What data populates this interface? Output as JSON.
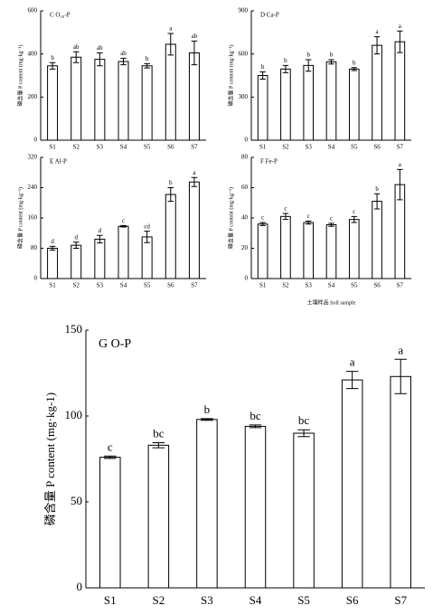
{
  "chart_data": [
    {
      "type": "bar",
      "title": "C   O₁₀-P",
      "ylabel": "磷含量 P content (mg·kg⁻¹)",
      "categories": [
        "S1",
        "S2",
        "S3",
        "S4",
        "S5",
        "S6",
        "S7"
      ],
      "values": [
        345,
        385,
        375,
        365,
        345,
        445,
        405
      ],
      "errors": [
        15,
        25,
        30,
        15,
        10,
        50,
        55
      ],
      "annotations": [
        "b",
        "ab",
        "ab",
        "ab",
        "b",
        "a",
        "ab"
      ],
      "ylim": [
        0,
        600
      ],
      "yticks": [
        0,
        200,
        400,
        600
      ]
    },
    {
      "type": "bar",
      "title": "D   Ca-P",
      "ylabel": "磷含量 P content (mg·kg⁻¹)",
      "categories": [
        "S1",
        "S2",
        "S3",
        "S4",
        "S5",
        "S6",
        "S7"
      ],
      "values": [
        450,
        495,
        520,
        545,
        495,
        660,
        685
      ],
      "errors": [
        25,
        25,
        40,
        15,
        10,
        60,
        75
      ],
      "annotations": [
        "b",
        "b",
        "b",
        "b",
        "b",
        "a",
        "a"
      ],
      "ylim": [
        0,
        900
      ],
      "yticks": [
        0,
        300,
        600,
        900
      ]
    },
    {
      "type": "bar",
      "title": "E   Al-P",
      "ylabel": "磷含量 P content (mg·kg⁻¹)",
      "categories": [
        "S1",
        "S2",
        "S3",
        "S4",
        "S5",
        "S6",
        "S7"
      ],
      "values": [
        80,
        88,
        104,
        138,
        110,
        222,
        255
      ],
      "errors": [
        5,
        8,
        10,
        2,
        15,
        18,
        12
      ],
      "annotations": [
        "d",
        "d",
        "d",
        "c",
        "cd",
        "b",
        "a"
      ],
      "ylim": [
        0,
        320
      ],
      "yticks": [
        0,
        80,
        160,
        240,
        320
      ]
    },
    {
      "type": "bar",
      "title": "F   Fe-P",
      "ylabel": "磷含量 P content (mg·kg⁻¹)",
      "xlabel": "土壤样品 Soil sample",
      "categories": [
        "S1",
        "S2",
        "S3",
        "S4",
        "S5",
        "S6",
        "S7"
      ],
      "values": [
        36,
        41,
        37,
        35.5,
        39,
        51,
        62
      ],
      "errors": [
        1,
        2,
        1,
        1,
        2,
        5,
        10
      ],
      "annotations": [
        "c",
        "c",
        "c",
        "c",
        "c",
        "b",
        "a"
      ],
      "ylim": [
        0,
        80
      ],
      "yticks": [
        0,
        20,
        40,
        60,
        80
      ]
    },
    {
      "type": "bar",
      "title": "G     O-P",
      "ylabel": "磷含量 P content (mg·kg-1)",
      "categories": [
        "S1",
        "S2",
        "S3",
        "S4",
        "S5",
        "S6",
        "S7"
      ],
      "values": [
        76,
        83,
        98,
        94,
        90,
        121,
        123
      ],
      "errors": [
        0.7,
        1.5,
        0.5,
        0.8,
        2,
        5,
        10
      ],
      "annotations": [
        "c",
        "bc",
        "b",
        "bc",
        "bc",
        "a",
        "a"
      ],
      "ylim": [
        0,
        150
      ],
      "yticks": [
        0,
        50,
        100,
        150
      ]
    }
  ]
}
